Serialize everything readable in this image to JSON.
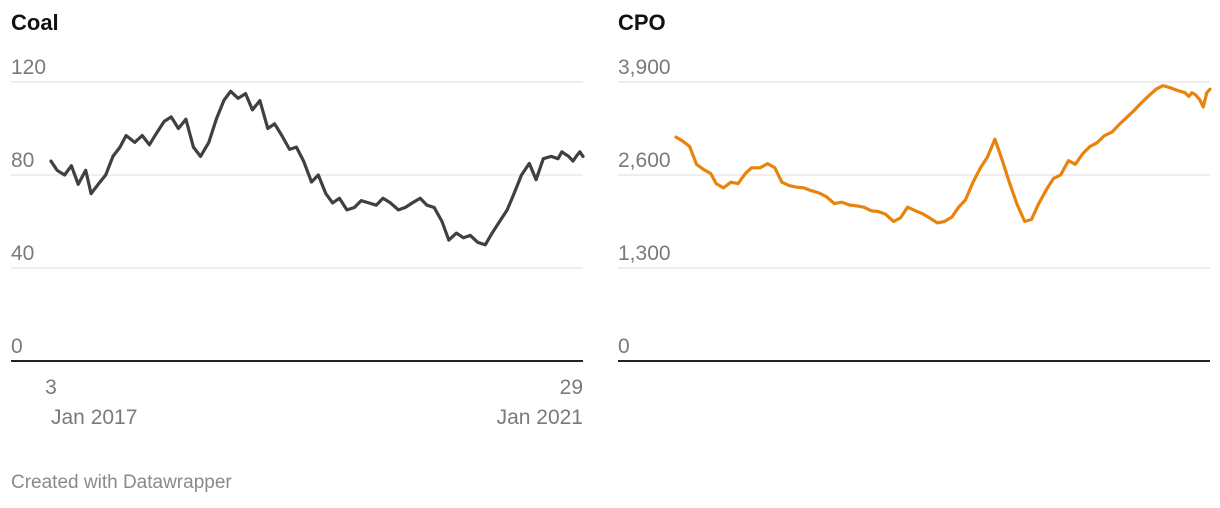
{
  "footer": "Created with Datawrapper",
  "chart_data": [
    {
      "type": "line",
      "title": "Coal",
      "color": "#404040",
      "yticks": [
        "120",
        "80",
        "40",
        "0"
      ],
      "ytick_values": [
        120,
        80,
        40,
        0
      ],
      "ylim": [
        0,
        120
      ],
      "xlim": [
        "2017-01-03",
        "2021-01-29"
      ],
      "xticks": [
        {
          "date": "2017-01-03",
          "day": "3",
          "month": "Jan 2017"
        },
        {
          "date": "2021-01-29",
          "day": "29",
          "month": "Jan 2021"
        }
      ],
      "series": [
        {
          "x": [
            "2017-01-03",
            "2017-01-20",
            "2017-02-10",
            "2017-03-01",
            "2017-03-20",
            "2017-04-10",
            "2017-04-25",
            "2017-05-15",
            "2017-06-05",
            "2017-06-25",
            "2017-07-15",
            "2017-08-01",
            "2017-08-25",
            "2017-09-15",
            "2017-10-05",
            "2017-10-25",
            "2017-11-15",
            "2017-12-05",
            "2017-12-25",
            "2018-01-15",
            "2018-02-05",
            "2018-02-25",
            "2018-03-20",
            "2018-04-10",
            "2018-05-01",
            "2018-05-20",
            "2018-06-10",
            "2018-07-01",
            "2018-07-20",
            "2018-08-10",
            "2018-09-01",
            "2018-09-20",
            "2018-10-10",
            "2018-11-01",
            "2018-11-20",
            "2018-12-10",
            "2019-01-01",
            "2019-01-20",
            "2019-02-10",
            "2019-03-01",
            "2019-03-20",
            "2019-04-10",
            "2019-05-01",
            "2019-05-20",
            "2019-06-10",
            "2019-07-01",
            "2019-07-20",
            "2019-08-10",
            "2019-09-01",
            "2019-09-20",
            "2019-10-10",
            "2019-11-01",
            "2019-11-20",
            "2019-12-10",
            "2020-01-01",
            "2020-01-20",
            "2020-02-10",
            "2020-03-01",
            "2020-03-20",
            "2020-04-10",
            "2020-05-01",
            "2020-05-20",
            "2020-06-10",
            "2020-07-01",
            "2020-07-20",
            "2020-08-10",
            "2020-09-01",
            "2020-09-20",
            "2020-10-10",
            "2020-11-01",
            "2020-11-20",
            "2020-12-01",
            "2020-12-10",
            "2020-12-20",
            "2021-01-01",
            "2021-01-10",
            "2021-01-20",
            "2021-01-29"
          ],
          "y": [
            86,
            82,
            80,
            84,
            76,
            82,
            72,
            76,
            80,
            88,
            92,
            97,
            94,
            97,
            93,
            98,
            103,
            105,
            100,
            104,
            92,
            88,
            94,
            104,
            112,
            116,
            113,
            115,
            108,
            112,
            100,
            102,
            97,
            91,
            92,
            86,
            77,
            80,
            72,
            68,
            70,
            65,
            66,
            69,
            68,
            67,
            70,
            68,
            65,
            66,
            68,
            70,
            67,
            66,
            60,
            52,
            55,
            53,
            54,
            51,
            50,
            55,
            60,
            65,
            72,
            80,
            85,
            78,
            87,
            88,
            87,
            90,
            89,
            88,
            86,
            88,
            90,
            88
          ]
        }
      ]
    },
    {
      "type": "line",
      "title": "CPO",
      "color": "#e8830c",
      "yticks": [
        "3,900",
        "2,600",
        "1,300",
        "0"
      ],
      "ytick_values": [
        3900,
        2600,
        1300,
        0
      ],
      "ylim": [
        0,
        3900
      ],
      "xlim": [
        "2017-01-03",
        "2021-01-29"
      ],
      "series": [
        {
          "x": [
            "2017-01-03",
            "2017-01-20",
            "2017-02-10",
            "2017-03-01",
            "2017-03-20",
            "2017-04-10",
            "2017-04-25",
            "2017-05-15",
            "2017-06-05",
            "2017-06-25",
            "2017-07-15",
            "2017-08-01",
            "2017-08-25",
            "2017-09-15",
            "2017-10-05",
            "2017-10-25",
            "2017-11-15",
            "2017-12-05",
            "2017-12-25",
            "2018-01-15",
            "2018-02-05",
            "2018-02-25",
            "2018-03-20",
            "2018-04-10",
            "2018-05-01",
            "2018-05-20",
            "2018-06-10",
            "2018-07-01",
            "2018-07-20",
            "2018-08-10",
            "2018-09-01",
            "2018-09-20",
            "2018-10-10",
            "2018-11-01",
            "2018-11-20",
            "2018-12-10",
            "2019-01-01",
            "2019-01-20",
            "2019-02-10",
            "2019-03-01",
            "2019-03-20",
            "2019-04-10",
            "2019-05-01",
            "2019-05-20",
            "2019-06-10",
            "2019-07-01",
            "2019-07-20",
            "2019-08-10",
            "2019-09-01",
            "2019-09-20",
            "2019-10-10",
            "2019-11-01",
            "2019-11-20",
            "2019-12-10",
            "2020-01-01",
            "2020-01-20",
            "2020-02-10",
            "2020-03-01",
            "2020-03-20",
            "2020-04-10",
            "2020-05-01",
            "2020-05-20",
            "2020-06-10",
            "2020-07-01",
            "2020-07-20",
            "2020-08-10",
            "2020-09-01",
            "2020-09-20",
            "2020-10-10",
            "2020-11-01",
            "2020-11-20",
            "2020-12-01",
            "2020-12-10",
            "2020-12-20",
            "2021-01-01",
            "2021-01-10",
            "2021-01-20",
            "2021-01-29"
          ],
          "y": [
            3130,
            3080,
            3000,
            2750,
            2680,
            2620,
            2480,
            2420,
            2500,
            2480,
            2620,
            2700,
            2700,
            2760,
            2700,
            2500,
            2450,
            2430,
            2420,
            2380,
            2350,
            2300,
            2200,
            2220,
            2180,
            2170,
            2150,
            2100,
            2090,
            2050,
            1950,
            2000,
            2150,
            2100,
            2060,
            2000,
            1930,
            1950,
            2010,
            2150,
            2250,
            2500,
            2700,
            2850,
            3100,
            2800,
            2500,
            2200,
            1950,
            1980,
            2200,
            2400,
            2550,
            2600,
            2800,
            2750,
            2900,
            3000,
            3050,
            3150,
            3200,
            3300,
            3400,
            3500,
            3600,
            3700,
            3800,
            3850,
            3820,
            3780,
            3750,
            3700,
            3750,
            3720,
            3650,
            3550,
            3750,
            3800
          ]
        }
      ]
    }
  ]
}
